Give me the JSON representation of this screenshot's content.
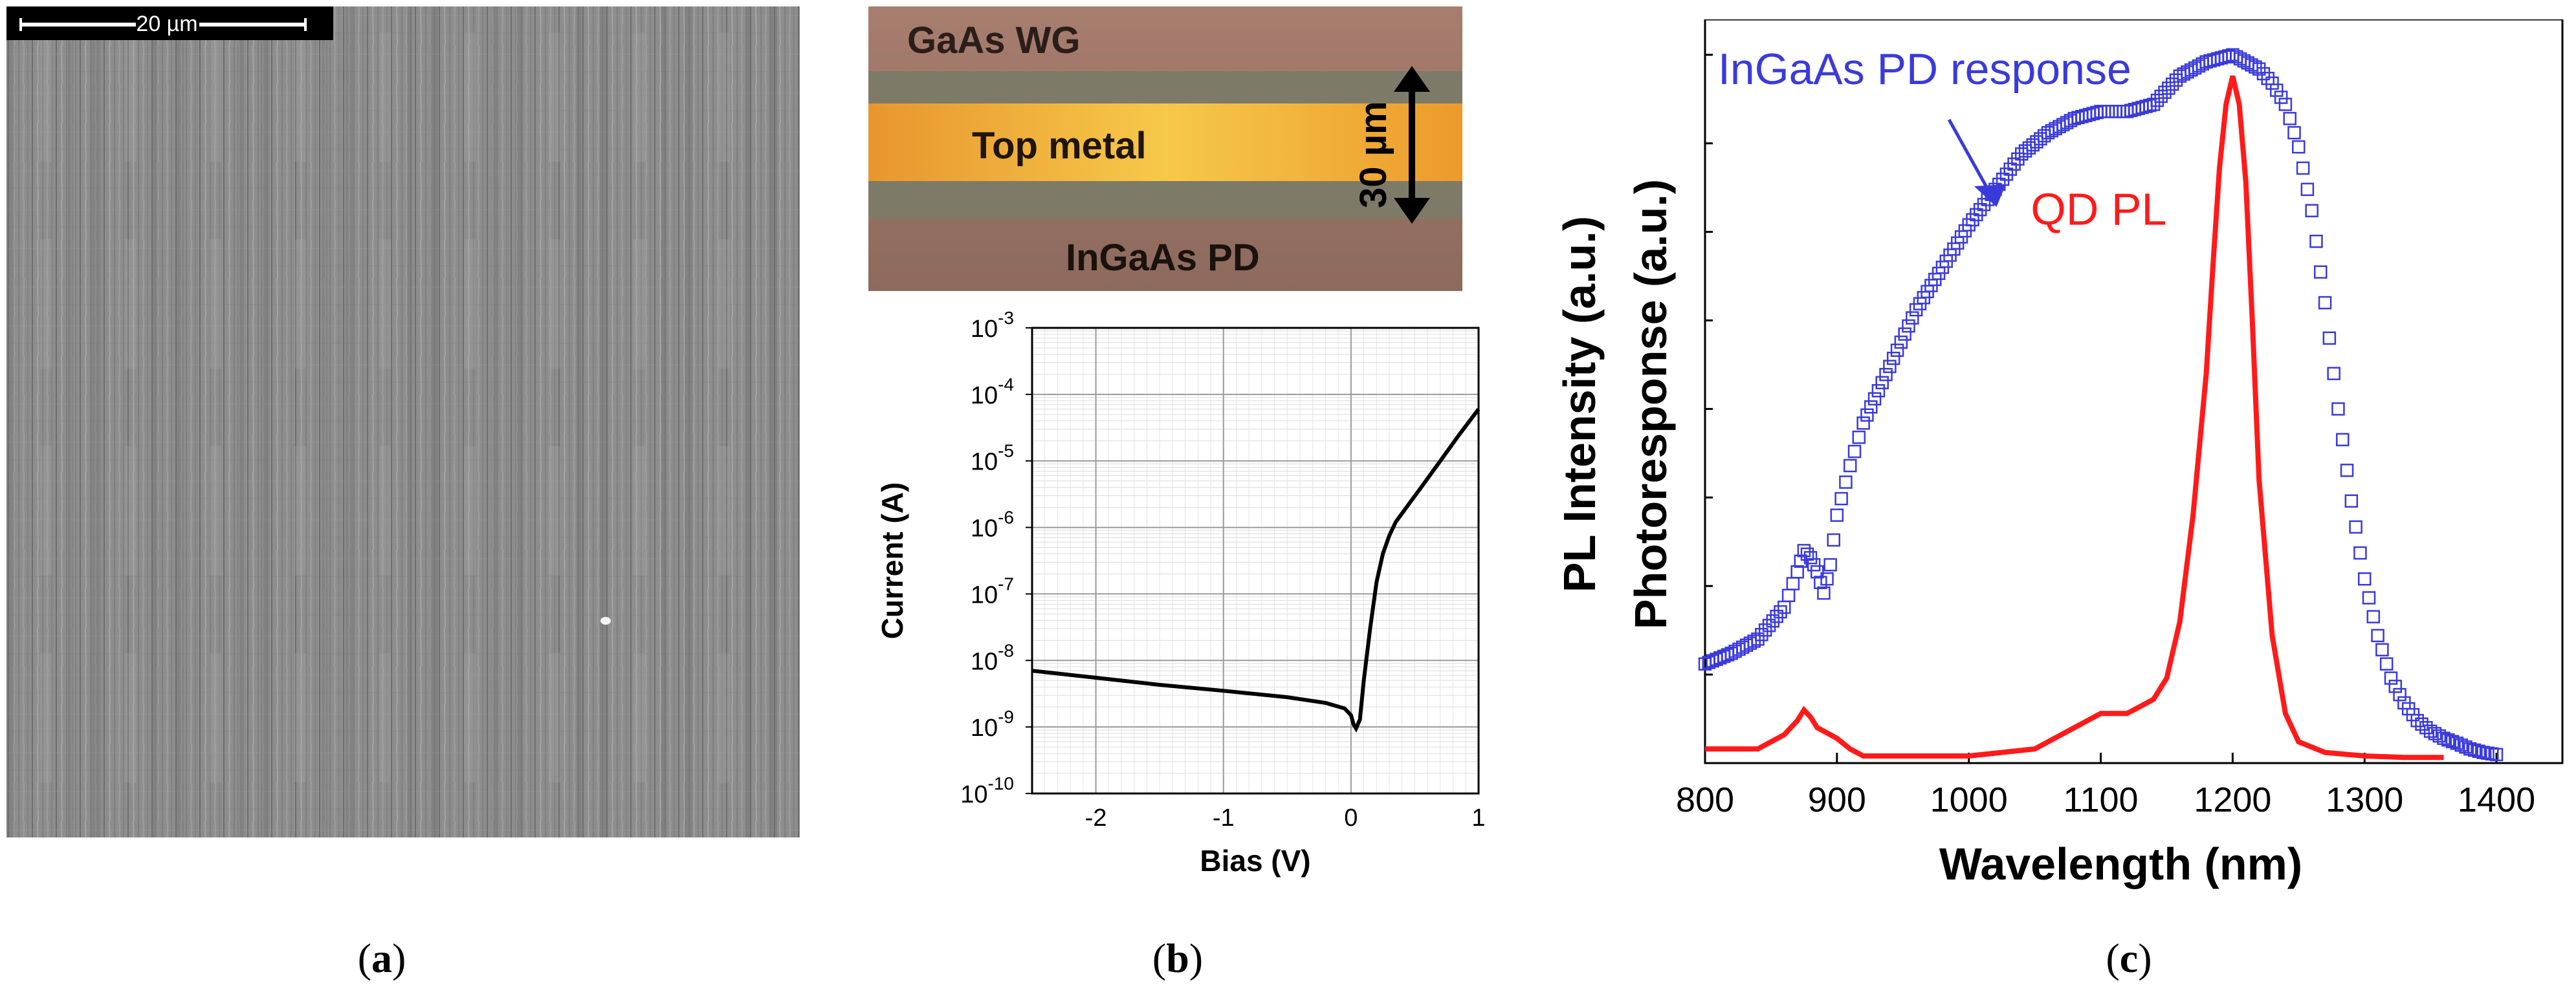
{
  "panel_a": {
    "caption_open": "(",
    "caption_letter": "a",
    "caption_close": ")",
    "scale_bar_label": "20 µm"
  },
  "panel_b": {
    "caption_open": "(",
    "caption_letter": "b",
    "caption_close": ")",
    "micro_labels": {
      "waveguide": "GaAs WG",
      "metal": "Top metal",
      "pd": "InGaAs PD",
      "dimension": "30 µm"
    }
  },
  "panel_c": {
    "caption_open": "(",
    "caption_letter": "c",
    "caption_close": ")"
  },
  "colors": {
    "pd_series": "#3a3adb",
    "pl_series": "#ff1a1a",
    "iv_line": "#000000"
  },
  "chart_data": [
    {
      "type": "line",
      "id": "iv-curve",
      "title": "",
      "xlabel": "Bias (V)",
      "ylabel": "Current (A)",
      "xlim": [
        -2.5,
        1
      ],
      "ylim_log10": [
        -10,
        -3
      ],
      "y_scale": "log",
      "grid": true,
      "x_ticks": [
        -2,
        -1,
        0,
        1
      ],
      "x_tick_labels": [
        "-2",
        "-1",
        "0",
        "1"
      ],
      "y_tick_exponents": [
        "-3",
        "-4",
        "-5",
        "-6",
        "-7",
        "-8",
        "-9",
        "-10"
      ],
      "series": [
        {
          "name": "I-V",
          "x": [
            -2.5,
            -2.0,
            -1.5,
            -1.0,
            -0.5,
            -0.2,
            -0.05,
            0.0,
            0.02,
            0.04,
            0.07,
            0.1,
            0.15,
            0.2,
            0.25,
            0.3,
            0.35,
            0.45,
            0.55,
            0.7,
            0.85,
            1.0
          ],
          "y": [
            7e-09,
            5.5e-09,
            4.3e-09,
            3.5e-09,
            2.8e-09,
            2.3e-09,
            1.9e-09,
            1.5e-09,
            1.1e-09,
            9.5e-10,
            1.3e-09,
            5e-09,
            3e-08,
            1.5e-07,
            4e-07,
            7.5e-07,
            1.2e-06,
            2.2e-06,
            4e-06,
            1e-05,
            2.5e-05,
            6e-05
          ]
        }
      ]
    },
    {
      "type": "scatter+line",
      "id": "spectra",
      "title": "",
      "xlabel": "Wavelength (nm)",
      "ylabel_primary": "PL Intensity (a.u.)",
      "ylabel_secondary": "Photoresponse (a.u.)",
      "xlim": [
        800,
        1450
      ],
      "ylim": [
        0,
        1.05
      ],
      "x_ticks": [
        800,
        900,
        1000,
        1100,
        1200,
        1300,
        1400
      ],
      "x_tick_labels": [
        "800",
        "900",
        "1000",
        "1100",
        "1200",
        "1300",
        "1400"
      ],
      "annotations": [
        {
          "text": "InGaAs PD response",
          "series": "InGaAs PD response"
        },
        {
          "text": "QD PL",
          "series": "QD PL"
        }
      ],
      "series": [
        {
          "name": "InGaAs PD response",
          "style": "open-squares",
          "x": [
            800,
            820,
            840,
            860,
            870,
            875,
            880,
            885,
            890,
            895,
            900,
            910,
            920,
            940,
            960,
            980,
            1000,
            1020,
            1040,
            1060,
            1080,
            1100,
            1120,
            1140,
            1160,
            1180,
            1200,
            1220,
            1230,
            1240,
            1250,
            1260,
            1270,
            1280,
            1290,
            1300,
            1310,
            1320,
            1330,
            1340,
            1350,
            1360,
            1370,
            1380,
            1390,
            1400
          ],
          "y": [
            0.14,
            0.155,
            0.175,
            0.22,
            0.27,
            0.3,
            0.29,
            0.27,
            0.24,
            0.28,
            0.35,
            0.42,
            0.48,
            0.56,
            0.64,
            0.7,
            0.76,
            0.81,
            0.86,
            0.89,
            0.91,
            0.92,
            0.92,
            0.93,
            0.97,
            0.99,
            1.0,
            0.98,
            0.96,
            0.93,
            0.87,
            0.78,
            0.65,
            0.5,
            0.37,
            0.26,
            0.18,
            0.12,
            0.085,
            0.06,
            0.045,
            0.035,
            0.028,
            0.02,
            0.015,
            0.012
          ]
        },
        {
          "name": "QD PL",
          "style": "line",
          "x": [
            800,
            820,
            840,
            860,
            870,
            875,
            880,
            885,
            890,
            900,
            910,
            920,
            950,
            1000,
            1050,
            1080,
            1100,
            1120,
            1140,
            1150,
            1160,
            1170,
            1180,
            1185,
            1190,
            1195,
            1200,
            1205,
            1210,
            1215,
            1220,
            1230,
            1240,
            1250,
            1270,
            1300,
            1330,
            1360
          ],
          "y": [
            0.02,
            0.02,
            0.02,
            0.04,
            0.06,
            0.075,
            0.065,
            0.05,
            0.045,
            0.035,
            0.02,
            0.01,
            0.01,
            0.01,
            0.02,
            0.05,
            0.07,
            0.07,
            0.09,
            0.12,
            0.2,
            0.35,
            0.55,
            0.7,
            0.84,
            0.93,
            0.97,
            0.93,
            0.82,
            0.62,
            0.4,
            0.18,
            0.07,
            0.03,
            0.015,
            0.01,
            0.008,
            0.008
          ]
        }
      ]
    }
  ]
}
